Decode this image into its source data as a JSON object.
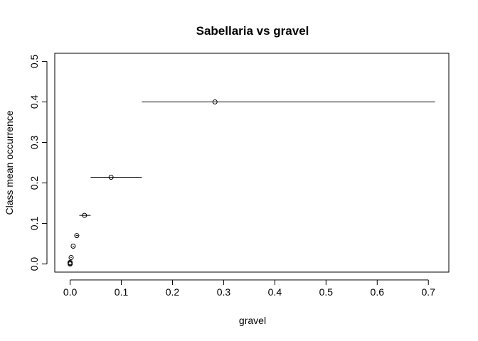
{
  "chart_data": {
    "type": "scatter",
    "title": "Sabellaria vs gravel",
    "xlabel": "gravel",
    "ylabel": "Class mean occurrence",
    "xlim": [
      -0.03,
      0.74
    ],
    "ylim": [
      -0.02,
      0.52
    ],
    "x_ticks": [
      0.0,
      0.1,
      0.2,
      0.3,
      0.4,
      0.5,
      0.6,
      0.7
    ],
    "x_tick_labels": [
      "0.0",
      "0.1",
      "0.2",
      "0.3",
      "0.4",
      "0.5",
      "0.6",
      "0.7"
    ],
    "y_ticks": [
      0.0,
      0.1,
      0.2,
      0.3,
      0.4,
      0.5
    ],
    "y_tick_labels": [
      "0.0",
      "0.1",
      "0.2",
      "0.3",
      "0.4",
      "0.5"
    ],
    "grid": false,
    "legend": false,
    "points": [
      {
        "x": 0.0,
        "y": 0.0,
        "xmin": 0.0,
        "xmax": 0.0
      },
      {
        "x": 0.0,
        "y": 0.002,
        "xmin": 0.0,
        "xmax": 0.0
      },
      {
        "x": 0.0,
        "y": 0.004,
        "xmin": 0.0,
        "xmax": 0.0
      },
      {
        "x": 0.002,
        "y": 0.016,
        "xmin": 0.001,
        "xmax": 0.003
      },
      {
        "x": 0.006,
        "y": 0.044,
        "xmin": 0.005,
        "xmax": 0.008
      },
      {
        "x": 0.013,
        "y": 0.07,
        "xmin": 0.011,
        "xmax": 0.016
      },
      {
        "x": 0.028,
        "y": 0.12,
        "xmin": 0.018,
        "xmax": 0.04
      },
      {
        "x": 0.08,
        "y": 0.214,
        "xmin": 0.04,
        "xmax": 0.14
      },
      {
        "x": 0.283,
        "y": 0.4,
        "xmin": 0.14,
        "xmax": 0.713
      }
    ]
  }
}
